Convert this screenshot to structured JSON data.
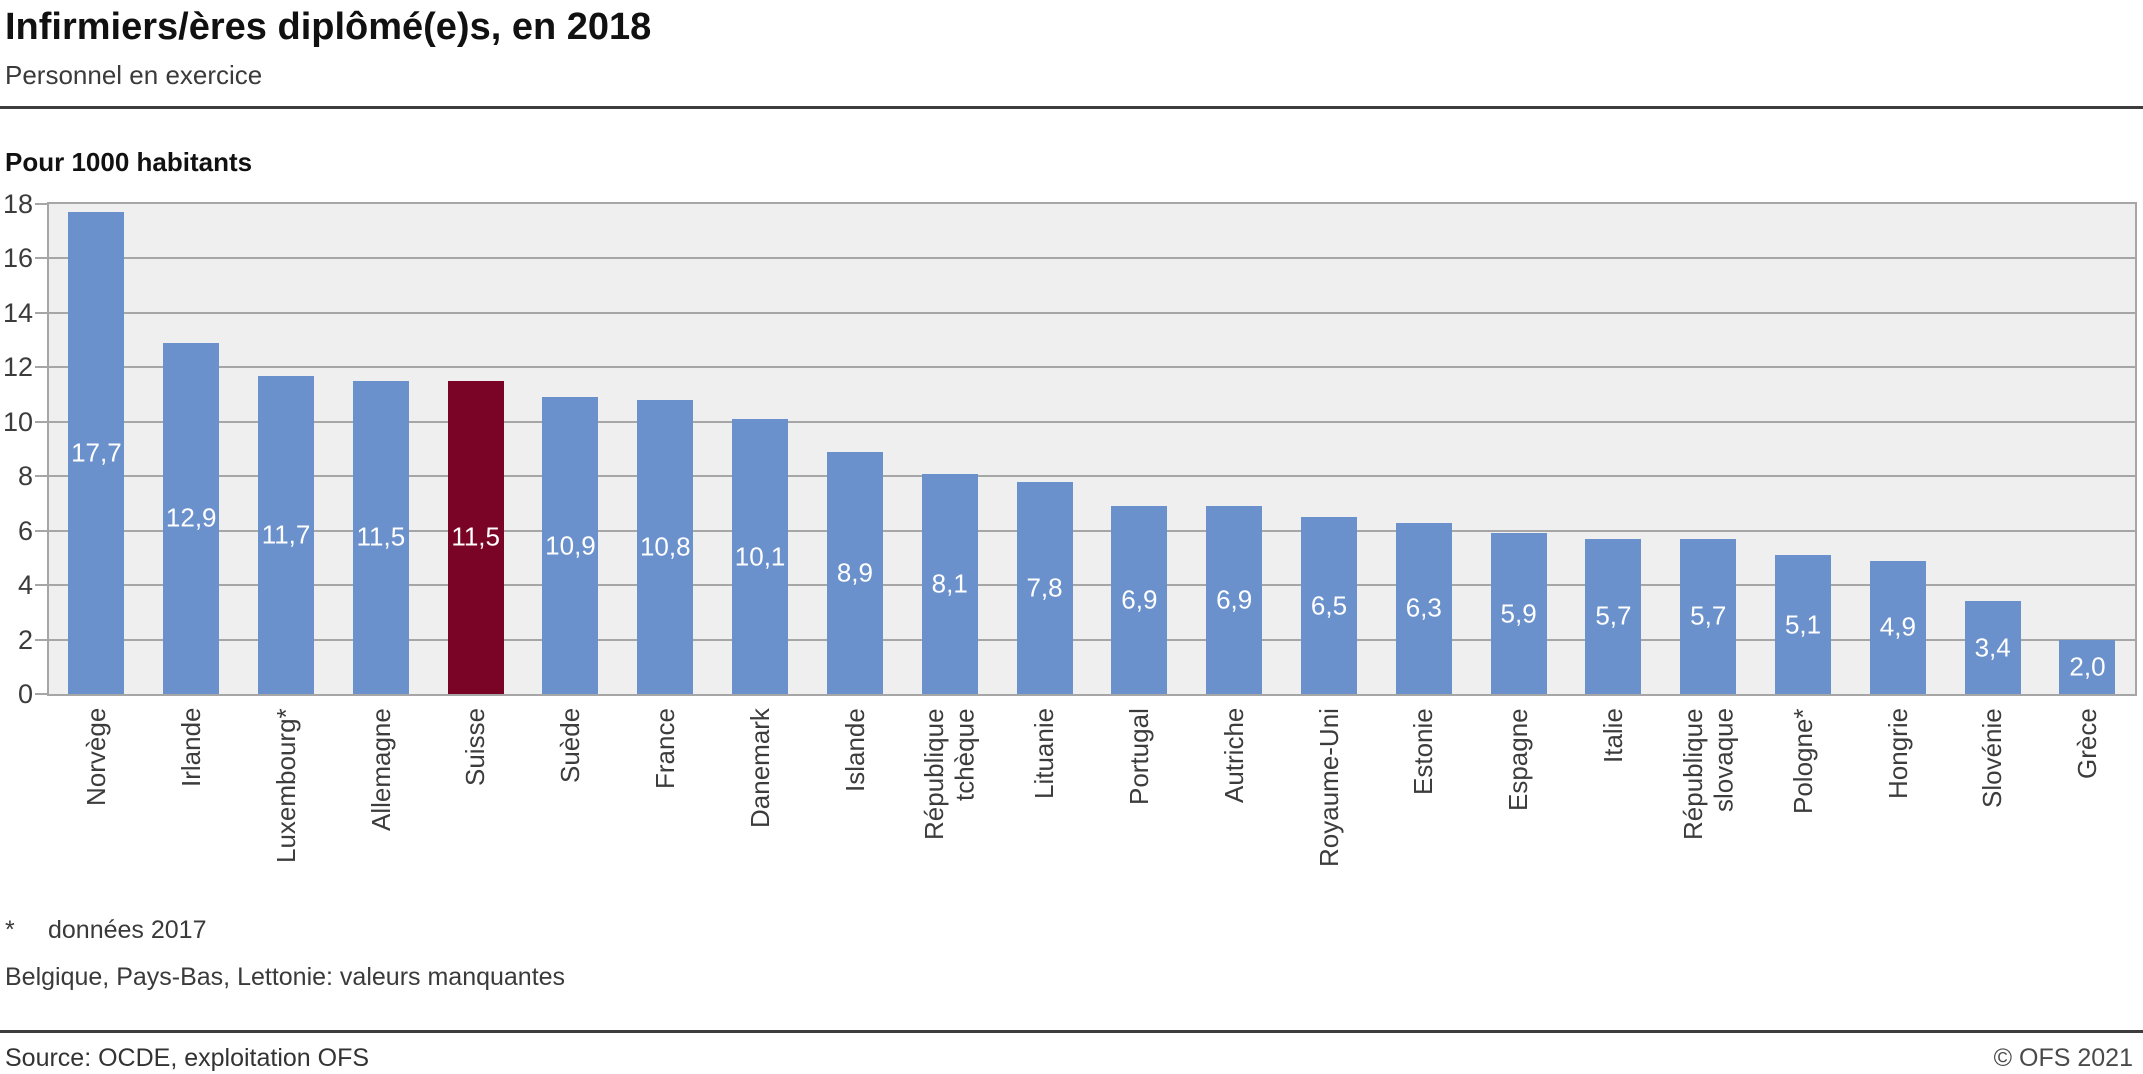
{
  "header": {
    "title": "Infirmiers/ères diplômé(e)s, en 2018",
    "subtitle": "Personnel en exercice"
  },
  "chart_data": {
    "type": "bar",
    "title": "Infirmiers/ères diplômé(e)s, en 2018",
    "subtitle": "Personnel en exercice",
    "unit_label": "Pour 1000 habitants",
    "categories": [
      "Norvège",
      "Irlande",
      "Luxembourg*",
      "Allemagne",
      "Suisse",
      "Suède",
      "France",
      "Danemark",
      "Islande",
      "République\ntchèque",
      "Lituanie",
      "Portugal",
      "Autriche",
      "Royaume-Uni",
      "Estonie",
      "Espagne",
      "Italie",
      "République\nslovaque",
      "Pologne*",
      "Hongrie",
      "Slovénie",
      "Grèce"
    ],
    "values": [
      17.7,
      12.9,
      11.7,
      11.5,
      11.5,
      10.9,
      10.8,
      10.1,
      8.9,
      8.1,
      7.8,
      6.9,
      6.9,
      6.5,
      6.3,
      5.9,
      5.7,
      5.7,
      5.1,
      4.9,
      3.4,
      2.0
    ],
    "value_labels": [
      "17,7",
      "12,9",
      "11,7",
      "11,5",
      "11,5",
      "10,9",
      "10,8",
      "10,1",
      "8,9",
      "8,1",
      "7,8",
      "6,9",
      "6,9",
      "6,5",
      "6,3",
      "5,9",
      "5,7",
      "5,7",
      "5,1",
      "4,9",
      "3,4",
      "2,0"
    ],
    "highlight_category": "Suisse",
    "highlight_index": 4,
    "ylim": [
      0,
      18
    ],
    "yticks": [
      0,
      2,
      4,
      6,
      8,
      10,
      12,
      14,
      16,
      18
    ],
    "grid": "horizontal-on",
    "legend": "none",
    "colors": {
      "bar": "#6b91cc",
      "highlight": "#7a0426",
      "plot_background": "#efefef",
      "gridline": "#a6a6a6",
      "axis_text": "#3c3c3c",
      "value_label": "#ffffff"
    }
  },
  "footnotes": {
    "asterisk": "*",
    "note1": "données 2017",
    "note2": "Belgique, Pays-Bas, Lettonie: valeurs manquantes"
  },
  "footer": {
    "source": "Source: OCDE, exploitation OFS",
    "copyright": "© OFS 2021"
  }
}
